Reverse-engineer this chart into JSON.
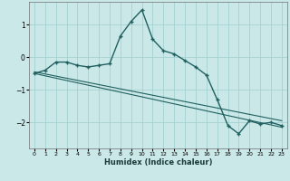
{
  "xlabel": "Humidex (Indice chaleur)",
  "x_ticks": [
    0,
    1,
    2,
    3,
    4,
    5,
    6,
    7,
    8,
    9,
    10,
    11,
    12,
    13,
    14,
    15,
    16,
    17,
    18,
    19,
    20,
    21,
    22,
    23
  ],
  "xlim": [
    -0.5,
    23.5
  ],
  "ylim": [
    -2.8,
    1.7
  ],
  "yticks": [
    -2,
    -1,
    0,
    1
  ],
  "bg_color": "#cbe8e8",
  "grid_color": "#9ecece",
  "line_color": "#206060",
  "series1_x": [
    0,
    1,
    2,
    3,
    4,
    5,
    6,
    7,
    8,
    9,
    10,
    11,
    12,
    13,
    14,
    15,
    16,
    17,
    18,
    19,
    20,
    21,
    22,
    23
  ],
  "series1_y": [
    -0.5,
    -0.4,
    -0.15,
    -0.15,
    -0.25,
    -0.3,
    -0.25,
    -0.2,
    0.65,
    1.1,
    1.45,
    0.55,
    0.2,
    0.1,
    -0.1,
    -0.3,
    -0.55,
    -1.3,
    -2.1,
    -2.35,
    -1.95,
    -2.05,
    -2.0,
    -2.1
  ],
  "series2_x": [
    0,
    23
  ],
  "series2_y": [
    -0.5,
    -2.15
  ],
  "series3_x": [
    0,
    23
  ],
  "series3_y": [
    -0.45,
    -1.95
  ]
}
